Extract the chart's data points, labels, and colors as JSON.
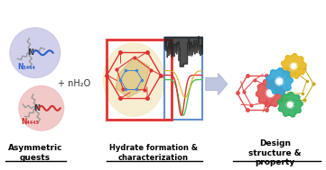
{
  "title": "",
  "bg_color": "#ffffff",
  "section1_label": "Asymmetric\nguests",
  "section2_label": "Hydrate formation &\ncharacterization",
  "section3_label": "Design\nstructure &\nproperty",
  "plus_label": "+ nH₂O",
  "n3444_label": "N₃₄₄₄",
  "n4445_label": "N₄₄₄₅",
  "blob1_color": "#c8c8e8",
  "blob2_color": "#f0c0c0",
  "arrow_color": "#b0b8d8",
  "gear_red_color": "#e05050",
  "gear_green_color": "#30b060",
  "gear_blue_color": "#30a8d8",
  "gear_yellow_color": "#e8b820",
  "hydrate_frame_color": "#e03030",
  "hydrate_bg_color": "#f5e8c0",
  "node_color": "#e03030",
  "line_color": "#e03030",
  "plot_green": "#50c050",
  "plot_red": "#e03030",
  "plot_yellow": "#d8b020",
  "label_color": "#000000",
  "n3444_color": "#3060c8",
  "n4445_color": "#d03030"
}
